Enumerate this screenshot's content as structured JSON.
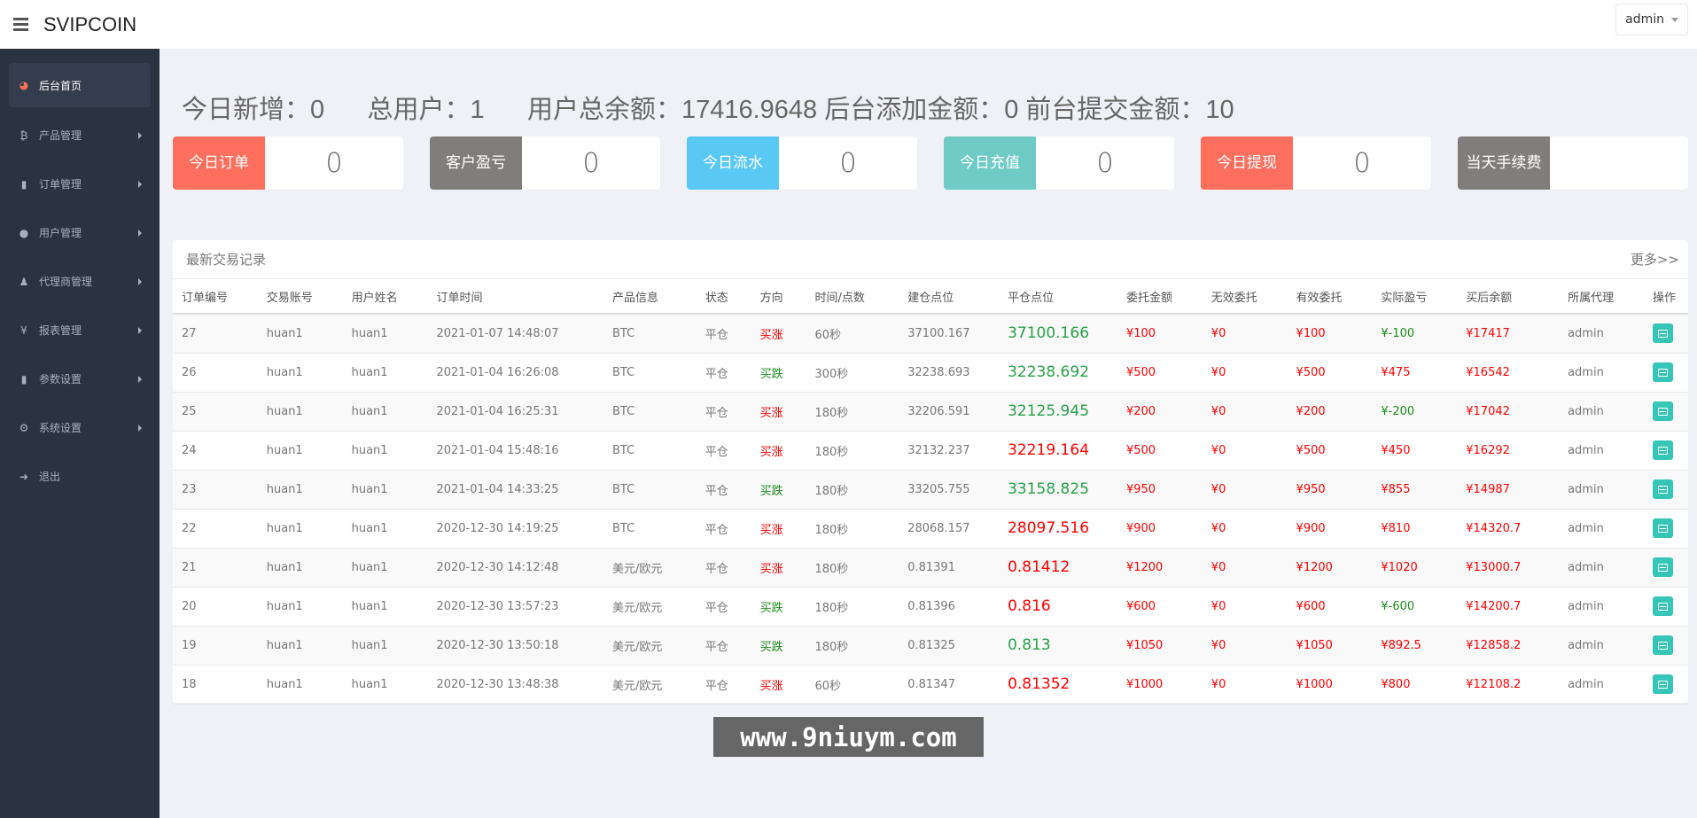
{
  "header": {
    "brand": "SVIPCOIN",
    "user": "admin"
  },
  "sidebar": {
    "items": [
      {
        "label": "后台首页",
        "icon": "dashboard-icon",
        "glyph": "◕",
        "active": true
      },
      {
        "label": "产品管理",
        "icon": "bitcoin-icon",
        "glyph": "₿"
      },
      {
        "label": "订单管理",
        "icon": "files-icon",
        "glyph": "▮"
      },
      {
        "label": "用户管理",
        "icon": "user-icon",
        "glyph": "●"
      },
      {
        "label": "代理商管理",
        "icon": "agent-icon",
        "glyph": "♟"
      },
      {
        "label": "报表管理",
        "icon": "yen-icon",
        "glyph": "¥"
      },
      {
        "label": "参数设置",
        "icon": "files-icon",
        "glyph": "▮"
      },
      {
        "label": "系统设置",
        "icon": "gears-icon",
        "glyph": "⚙"
      },
      {
        "label": "退出",
        "icon": "sign-out-icon",
        "glyph": "➜"
      }
    ]
  },
  "stats": {
    "text": "今日新增：0      总用户：1      用户总余额：17416.9648 后台添加金额：0 前台提交金额：10"
  },
  "cards": [
    {
      "label1": "今日",
      "label2": "订单",
      "value": "0",
      "color": "#fe6f5e"
    },
    {
      "label1": "客户",
      "label2": "盈亏",
      "value": "0",
      "color": "#807e7c"
    },
    {
      "label1": "今日",
      "label2": "流水",
      "value": "0",
      "color": "#5ac8f5"
    },
    {
      "label1": "今日",
      "label2": "充值",
      "value": "0",
      "color": "#6fcbc6"
    },
    {
      "label1": "今日",
      "label2": "提现",
      "value": "0",
      "color": "#fe6f5e"
    },
    {
      "label1": "当天",
      "label2": "手续费",
      "value": "",
      "color": "#807e7c"
    }
  ],
  "panel": {
    "title": "最新交易记录",
    "more": "更多>>",
    "columns": [
      "订单编号",
      "交易账号",
      "用户姓名",
      "订单时间",
      "产品信息",
      "状态",
      "方向",
      "时间/点数",
      "建仓点位",
      "平仓点位",
      "委托金额",
      "无效委托",
      "有效委托",
      "实际盈亏",
      "买后余额",
      "所属代理",
      "操作"
    ],
    "rows": [
      [
        "27",
        "huan1",
        "huan1",
        "2021-01-07 14:48:07",
        "BTC",
        "平仓",
        "买涨",
        "60秒",
        "37100.167",
        "37100.166",
        "¥100",
        "¥0",
        "¥100",
        "¥-100",
        "¥17417",
        "admin"
      ],
      [
        "26",
        "huan1",
        "huan1",
        "2021-01-04 16:26:08",
        "BTC",
        "平仓",
        "买跌",
        "300秒",
        "32238.693",
        "32238.692",
        "¥500",
        "¥0",
        "¥500",
        "¥475",
        "¥16542",
        "admin"
      ],
      [
        "25",
        "huan1",
        "huan1",
        "2021-01-04 16:25:31",
        "BTC",
        "平仓",
        "买涨",
        "180秒",
        "32206.591",
        "32125.945",
        "¥200",
        "¥0",
        "¥200",
        "¥-200",
        "¥17042",
        "admin"
      ],
      [
        "24",
        "huan1",
        "huan1",
        "2021-01-04 15:48:16",
        "BTC",
        "平仓",
        "买涨",
        "180秒",
        "32132.237",
        "32219.164",
        "¥500",
        "¥0",
        "¥500",
        "¥450",
        "¥16292",
        "admin"
      ],
      [
        "23",
        "huan1",
        "huan1",
        "2021-01-04 14:33:25",
        "BTC",
        "平仓",
        "买跌",
        "180秒",
        "33205.755",
        "33158.825",
        "¥950",
        "¥0",
        "¥950",
        "¥855",
        "¥14987",
        "admin"
      ],
      [
        "22",
        "huan1",
        "huan1",
        "2020-12-30 14:19:25",
        "BTC",
        "平仓",
        "买涨",
        "180秒",
        "28068.157",
        "28097.516",
        "¥900",
        "¥0",
        "¥900",
        "¥810",
        "¥14320.7",
        "admin"
      ],
      [
        "21",
        "huan1",
        "huan1",
        "2020-12-30 14:12:48",
        "美元/欧元",
        "平仓",
        "买涨",
        "180秒",
        "0.81391",
        "0.81412",
        "¥1200",
        "¥0",
        "¥1200",
        "¥1020",
        "¥13000.7",
        "admin"
      ],
      [
        "20",
        "huan1",
        "huan1",
        "2020-12-30 13:57:23",
        "美元/欧元",
        "平仓",
        "买跌",
        "180秒",
        "0.81396",
        "0.816",
        "¥600",
        "¥0",
        "¥600",
        "¥-600",
        "¥14200.7",
        "admin"
      ],
      [
        "19",
        "huan1",
        "huan1",
        "2020-12-30 13:50:18",
        "美元/欧元",
        "平仓",
        "买跌",
        "180秒",
        "0.81325",
        "0.813",
        "¥1050",
        "¥0",
        "¥1050",
        "¥892.5",
        "¥12858.2",
        "admin"
      ],
      [
        "18",
        "huan1",
        "huan1",
        "2020-12-30 13:48:38",
        "美元/欧元",
        "平仓",
        "买涨",
        "60秒",
        "0.81347",
        "0.81352",
        "¥1000",
        "¥0",
        "¥1000",
        "¥800",
        "¥12108.2",
        "admin"
      ]
    ],
    "close_colors": [
      "green",
      "green",
      "green",
      "red",
      "green",
      "red",
      "red",
      "red",
      "green",
      "red"
    ]
  },
  "watermark": "www.9niuym.com"
}
